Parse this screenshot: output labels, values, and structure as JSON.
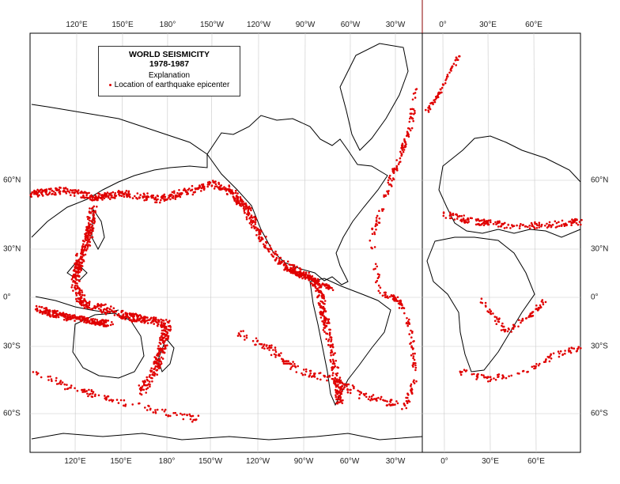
{
  "map": {
    "legend": {
      "title": "WORLD SEISMICITY",
      "years": "1978-1987",
      "explanation": "Explanation",
      "item_label": "Location of earthquake epicenter",
      "dot_color": "#e00000"
    },
    "longitude_labels": [
      "120°E",
      "150°E",
      "180°",
      "150°W",
      "120°W",
      "90°W",
      "60°W",
      "30°W",
      "0°",
      "30°E",
      "60°E"
    ],
    "latitude_labels": [
      "60°N",
      "30°N",
      "0°",
      "30°S",
      "60°S"
    ],
    "colors": {
      "coastline": "#000000",
      "epicenter": "#e00000",
      "grid": "#bbbbbb"
    }
  }
}
